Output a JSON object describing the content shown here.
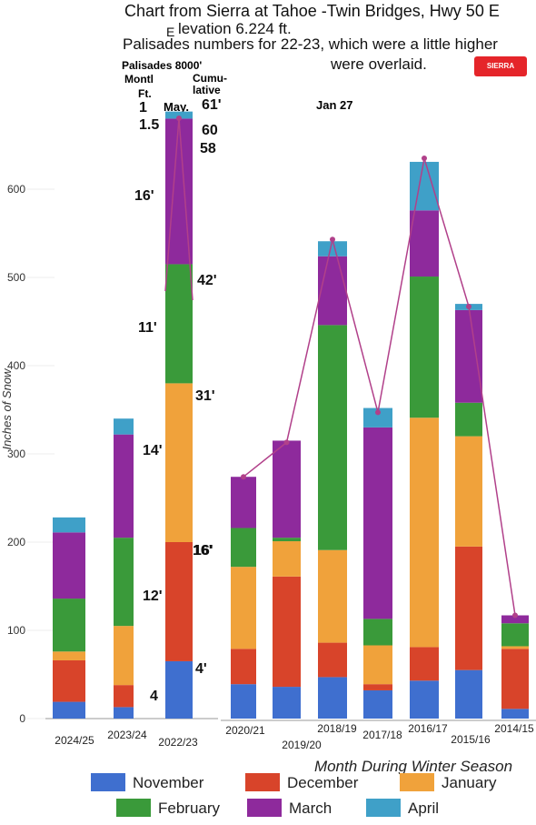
{
  "header": {
    "line1": "Chart from Sierra at Tahoe -Twin Bridges, Hwy 50 E",
    "line2": "levation 6.224 ft.",
    "line2_prefix": "E",
    "line3": "Palisades numbers for 22-23, which were a little higher",
    "line4": "were overlaid.",
    "logo_text": "SIERRA AT TAHOE"
  },
  "palisades_header": {
    "title": "Palisades 8000'",
    "monthly": "Montl",
    "ft": "Ft.",
    "cumulative": "Cumu-lative",
    "may": "May.",
    "jan27": "Jan 27"
  },
  "colors": {
    "November": "#3f6fcf",
    "December": "#d8442a",
    "January": "#f0a23b",
    "February": "#3a9a3a",
    "March": "#8e2a9c",
    "April": "#3fa0c8",
    "line": "#b1408a"
  },
  "chart_data": {
    "type": "bar",
    "stacked": true,
    "ylabel": "Inches of Snow",
    "xlabel": "Month During Winter Season",
    "ylim": [
      0,
      650
    ],
    "yticks": [
      0,
      100,
      200,
      300,
      400,
      500,
      600
    ],
    "categories": [
      "2024/25",
      "2023/24",
      "2022/23",
      "2020/21",
      "2019/20",
      "2018/19",
      "2017/18",
      "2016/17",
      "2015/16",
      "2014/15"
    ],
    "series": [
      {
        "name": "November",
        "values": [
          19,
          13,
          65,
          39,
          36,
          47,
          32,
          43,
          55,
          11
        ]
      },
      {
        "name": "December",
        "values": [
          47,
          25,
          135,
          40,
          125,
          39,
          7,
          38,
          140,
          68
        ]
      },
      {
        "name": "January",
        "values": [
          10,
          67,
          180,
          93,
          40,
          105,
          44,
          260,
          125,
          3
        ]
      },
      {
        "name": "February",
        "values": [
          60,
          100,
          135,
          44,
          4,
          255,
          30,
          160,
          38,
          26
        ]
      },
      {
        "name": "March",
        "values": [
          75,
          117,
          165,
          58,
          110,
          78,
          217,
          75,
          105,
          9
        ]
      },
      {
        "name": "April",
        "values": [
          17,
          18,
          8,
          0,
          0,
          17,
          22,
          55,
          7,
          0
        ]
      }
    ],
    "line_values": {
      "2020/21": 274,
      "2019/20": 313,
      "2018/19": 543,
      "2017/18": 347,
      "2016/17": 635,
      "2015/16": 467,
      "2014/15": 117
    },
    "palisades_annotations": {
      "monthly": [
        "4",
        "12'",
        "16'",
        "14'",
        "11'",
        "16'",
        "1.5"
      ],
      "cumulative": [
        "4'",
        "16'",
        "31'",
        "42'",
        "58",
        "60",
        "61'"
      ],
      "extra": [
        "1"
      ]
    }
  },
  "legend": [
    {
      "label": "November",
      "color": "#3f6fcf"
    },
    {
      "label": "December",
      "color": "#d8442a"
    },
    {
      "label": "January",
      "color": "#f0a23b"
    },
    {
      "label": "February",
      "color": "#3a9a3a"
    },
    {
      "label": "March",
      "color": "#8e2a9c"
    },
    {
      "label": "April",
      "color": "#3fa0c8"
    }
  ]
}
